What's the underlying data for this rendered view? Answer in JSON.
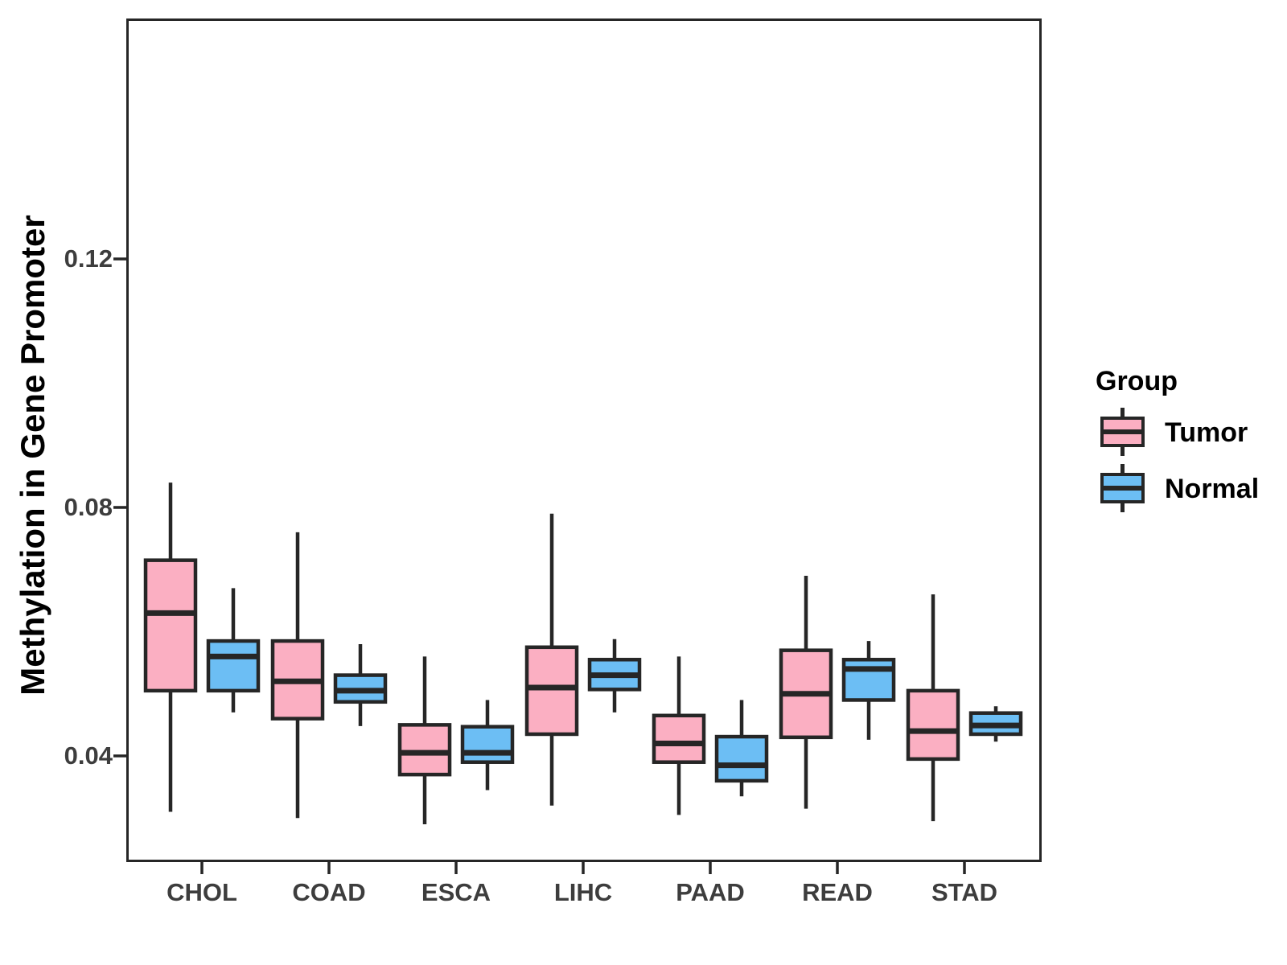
{
  "chart_data": {
    "type": "boxplot",
    "title": "",
    "xlabel": "",
    "ylabel": "Methylation in Gene Promoter",
    "categories": [
      "CHOL",
      "COAD",
      "ESCA",
      "LIHC",
      "PAAD",
      "READ",
      "STAD"
    ],
    "y_ticks": [
      0.04,
      0.08,
      0.12
    ],
    "y_tick_labels": [
      "0.04",
      "0.08",
      "0.12"
    ],
    "ylim": [
      0.023,
      0.159
    ],
    "grid": false,
    "legend": {
      "title": "Group",
      "position": "right",
      "entries": [
        {
          "label": "Tumor",
          "color": "#FBAFC2"
        },
        {
          "label": "Normal",
          "color": "#6CBEF4"
        }
      ]
    },
    "colors": {
      "tumor_fill": "#FBAFC2",
      "normal_fill": "#6CBEF4",
      "line": "#262626",
      "axis_text": "#3D3D3D"
    },
    "series": [
      {
        "name": "Tumor",
        "color": "#FBAFC2",
        "boxes": [
          {
            "category": "CHOL",
            "whisker_low": 0.031,
            "q1": 0.0505,
            "median": 0.063,
            "q3": 0.0715,
            "whisker_high": 0.084
          },
          {
            "category": "COAD",
            "whisker_low": 0.03,
            "q1": 0.046,
            "median": 0.052,
            "q3": 0.0585,
            "whisker_high": 0.076
          },
          {
            "category": "ESCA",
            "whisker_low": 0.029,
            "q1": 0.037,
            "median": 0.0405,
            "q3": 0.045,
            "whisker_high": 0.056
          },
          {
            "category": "LIHC",
            "whisker_low": 0.032,
            "q1": 0.0435,
            "median": 0.051,
            "q3": 0.0575,
            "whisker_high": 0.079
          },
          {
            "category": "PAAD",
            "whisker_low": 0.0305,
            "q1": 0.039,
            "median": 0.042,
            "q3": 0.0465,
            "whisker_high": 0.056
          },
          {
            "category": "READ",
            "whisker_low": 0.0315,
            "q1": 0.043,
            "median": 0.05,
            "q3": 0.057,
            "whisker_high": 0.069
          },
          {
            "category": "STAD",
            "whisker_low": 0.0295,
            "q1": 0.0395,
            "median": 0.044,
            "q3": 0.0505,
            "whisker_high": 0.066
          }
        ]
      },
      {
        "name": "Normal",
        "color": "#6CBEF4",
        "boxes": [
          {
            "category": "CHOL",
            "whisker_low": 0.047,
            "q1": 0.0505,
            "median": 0.056,
            "q3": 0.0585,
            "whisker_high": 0.067
          },
          {
            "category": "COAD",
            "whisker_low": 0.0448,
            "q1": 0.0487,
            "median": 0.0505,
            "q3": 0.053,
            "whisker_high": 0.058
          },
          {
            "category": "ESCA",
            "whisker_low": 0.0345,
            "q1": 0.039,
            "median": 0.0405,
            "q3": 0.0447,
            "whisker_high": 0.049
          },
          {
            "category": "LIHC",
            "whisker_low": 0.047,
            "q1": 0.0507,
            "median": 0.053,
            "q3": 0.0555,
            "whisker_high": 0.0588
          },
          {
            "category": "PAAD",
            "whisker_low": 0.0335,
            "q1": 0.036,
            "median": 0.0385,
            "q3": 0.0431,
            "whisker_high": 0.049
          },
          {
            "category": "READ",
            "whisker_low": 0.0426,
            "q1": 0.049,
            "median": 0.054,
            "q3": 0.0555,
            "whisker_high": 0.0585
          },
          {
            "category": "STAD",
            "whisker_low": 0.0423,
            "q1": 0.0435,
            "median": 0.0449,
            "q3": 0.0469,
            "whisker_high": 0.048
          }
        ]
      }
    ]
  }
}
